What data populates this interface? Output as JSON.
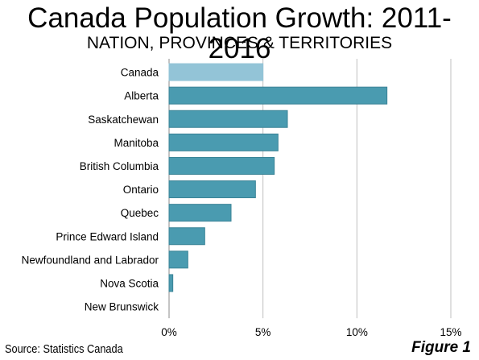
{
  "header": {
    "title": "Canada Population Growth: 2011-2016",
    "subtitle": "NATION, PROVINCES & TERRITORIES"
  },
  "footer": {
    "source": "Source: Statistics Canada",
    "figure": "Figure 1"
  },
  "colors": {
    "highlight_bar": "#93c4d7",
    "bar": "#4a9bb0",
    "bar_edge": "#3a8396",
    "grid": "#bfbfbf",
    "axis": "#888888"
  },
  "chart_data": {
    "type": "bar",
    "orientation": "horizontal",
    "categories": [
      "Canada",
      "Alberta",
      "Saskatchewan",
      "Manitoba",
      "British Columbia",
      "Ontario",
      "Quebec",
      "Prince Edward Island",
      "Newfoundland and Labrador",
      "Nova Scotia",
      "New Brunswick"
    ],
    "values": [
      5.0,
      11.6,
      6.3,
      5.8,
      5.6,
      4.6,
      3.3,
      1.9,
      1.0,
      0.2,
      0.0
    ],
    "highlight_category": "Canada",
    "unit": "%",
    "xlim": [
      0,
      15
    ],
    "xticks": [
      0,
      5,
      10,
      15
    ],
    "xtick_labels": [
      "0%",
      "5%",
      "10%",
      "15%"
    ],
    "grid": "vertical",
    "legend": "none"
  }
}
